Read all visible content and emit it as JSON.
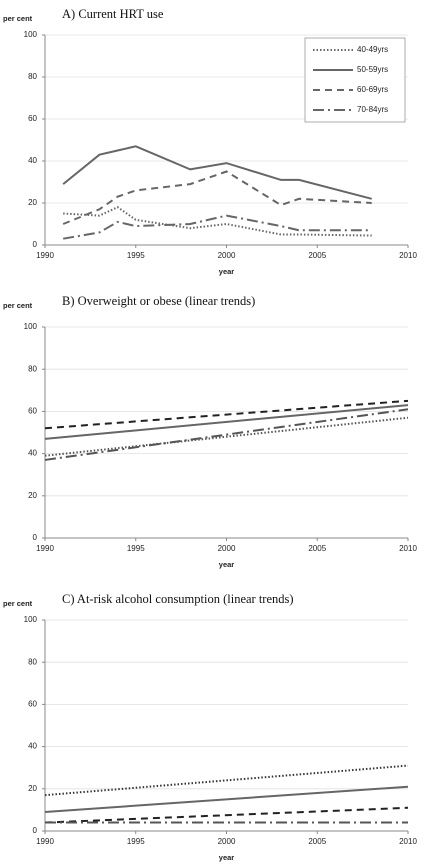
{
  "chart_data": [
    {
      "type": "line",
      "title": "A) Current HRT use",
      "ylabel": "per cent",
      "xlabel": "year",
      "x": [
        1991,
        1993,
        1994,
        1995,
        1998,
        2000,
        2003,
        2004,
        2008
      ],
      "series": [
        {
          "name": "40-49yrs",
          "color": "#666666",
          "dash": "dotted",
          "values": [
            15,
            14,
            18,
            12,
            8,
            10,
            5,
            5,
            4.5
          ]
        },
        {
          "name": "50-59yrs",
          "color": "#666666",
          "dash": "solid",
          "values": [
            29,
            43,
            45,
            47,
            36,
            39,
            31,
            31,
            22
          ]
        },
        {
          "name": "60-69yrs",
          "color": "#666666",
          "dash": "dashed",
          "values": [
            10,
            17,
            23,
            26,
            29,
            35,
            19,
            22,
            20
          ]
        },
        {
          "name": "70-84yrs",
          "color": "#666666",
          "dash": "dashdot",
          "values": [
            3,
            6,
            11,
            9,
            10,
            14,
            9,
            7,
            7
          ]
        }
      ],
      "xlim": [
        1990,
        2010
      ],
      "xticks": [
        1990,
        1995,
        2000,
        2005,
        2010
      ],
      "ylim": [
        0,
        100
      ],
      "yticks": [
        0,
        20,
        40,
        60,
        80,
        100
      ],
      "grid": true,
      "legend": "top-right"
    },
    {
      "type": "line",
      "title": "B) Overweight or obese (linear trends)",
      "ylabel": "per cent",
      "xlabel": "year",
      "x": [
        1990,
        2010
      ],
      "series": [
        {
          "name": "40-49yrs",
          "color": "#555555",
          "dash": "dotted",
          "values": [
            39,
            57
          ]
        },
        {
          "name": "50-59yrs",
          "color": "#666666",
          "dash": "solid",
          "values": [
            47,
            63
          ]
        },
        {
          "name": "60-69yrs",
          "color": "#222222",
          "dash": "dashed",
          "values": [
            52,
            65
          ]
        },
        {
          "name": "70-84yrs",
          "color": "#555555",
          "dash": "dashdot",
          "values": [
            37,
            61
          ]
        }
      ],
      "xlim": [
        1990,
        2010
      ],
      "xticks": [
        1990,
        1995,
        2000,
        2005,
        2010
      ],
      "ylim": [
        0,
        100
      ],
      "yticks": [
        0,
        20,
        40,
        60,
        80,
        100
      ],
      "grid": true
    },
    {
      "type": "line",
      "title": "C) At-risk alcohol consumption (linear trends)",
      "ylabel": "per cent",
      "xlabel": "year",
      "x": [
        1990,
        2010
      ],
      "series": [
        {
          "name": "40-49yrs",
          "color": "#333333",
          "dash": "dotted",
          "values": [
            17,
            31
          ]
        },
        {
          "name": "50-59yrs",
          "color": "#666666",
          "dash": "solid",
          "values": [
            9,
            21
          ]
        },
        {
          "name": "60-69yrs",
          "color": "#222222",
          "dash": "dashed",
          "values": [
            4,
            11
          ]
        },
        {
          "name": "70-84yrs",
          "color": "#555555",
          "dash": "dashdot",
          "values": [
            4,
            4
          ]
        }
      ],
      "xlim": [
        1990,
        2010
      ],
      "xticks": [
        1990,
        1995,
        2000,
        2005,
        2010
      ],
      "ylim": [
        0,
        100
      ],
      "yticks": [
        0,
        20,
        40,
        60,
        80,
        100
      ],
      "grid": true
    }
  ]
}
